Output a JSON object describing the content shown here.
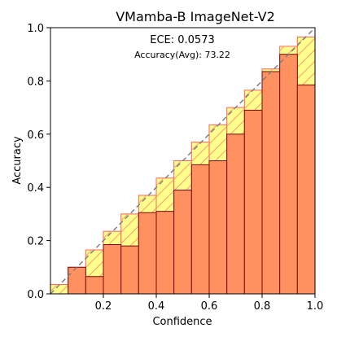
{
  "chart_data": {
    "type": "bar",
    "title": "VMamba-B  ImageNet-V2",
    "xlabel": "Confidence",
    "ylabel": "Accuracy",
    "xlim": [
      0.0,
      1.0
    ],
    "ylim": [
      0.0,
      1.0
    ],
    "xticks": [
      "0.2",
      "0.4",
      "0.6",
      "0.8",
      "1.0"
    ],
    "yticks": [
      "0.0",
      "0.2",
      "0.4",
      "0.6",
      "0.8",
      "1.0"
    ],
    "annotations": [
      "ECE: 0.0573",
      "Accuracy(Avg): 73.22"
    ],
    "grid": false,
    "bin_width": 0.0667,
    "bins": [
      0.0,
      0.0667,
      0.1333,
      0.2,
      0.2667,
      0.3333,
      0.4,
      0.4667,
      0.5333,
      0.6,
      0.6667,
      0.7333,
      0.8,
      0.8667,
      0.9333
    ],
    "series": [
      {
        "role": "accuracy",
        "values": [
          0.0,
          0.1,
          0.065,
          0.185,
          0.18,
          0.305,
          0.31,
          0.39,
          0.485,
          0.5,
          0.6,
          0.69,
          0.835,
          0.9,
          0.785
        ],
        "color": "#ff9060",
        "edge": "#7a0a0a"
      },
      {
        "role": "gap",
        "values": [
          0.035,
          0.1,
          0.165,
          0.235,
          0.3,
          0.37,
          0.435,
          0.5,
          0.57,
          0.635,
          0.7,
          0.765,
          0.845,
          0.93,
          0.965
        ],
        "color": "#ffff66",
        "edge": "#ff6060",
        "hatch": "/"
      }
    ],
    "reference_line": {
      "from": [
        0,
        0
      ],
      "to": [
        1,
        1
      ],
      "style": "dashed",
      "color": "#808080"
    }
  }
}
